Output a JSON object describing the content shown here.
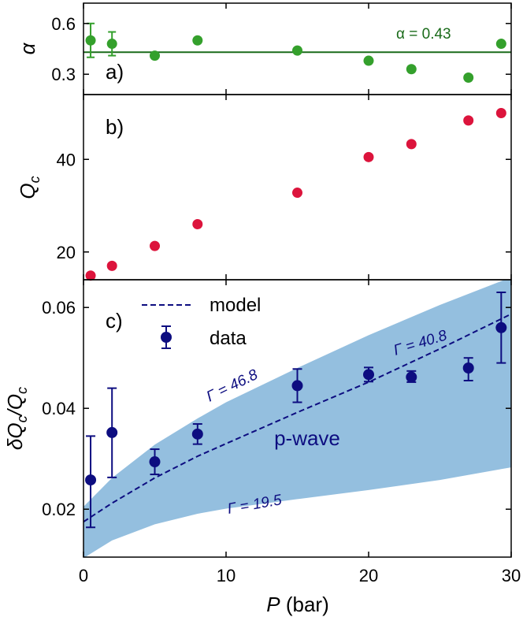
{
  "chart_data": [
    {
      "panel": "a)",
      "type": "scatter",
      "ylabel": "α",
      "ylim": [
        0.18,
        0.72
      ],
      "yticks": [
        0.3,
        0.6
      ],
      "ytick_labels": [
        "0.3",
        "0.6"
      ],
      "x": [
        0.5,
        2,
        5,
        8,
        15,
        20,
        23,
        27,
        29.3
      ],
      "y": [
        0.5,
        0.48,
        0.41,
        0.5,
        0.44,
        0.38,
        0.33,
        0.28,
        0.48
      ],
      "yerr": [
        0.1,
        0.07,
        0,
        0,
        0,
        0,
        0,
        0,
        0
      ],
      "hline": 0.43,
      "hline_label": "α = 0.43",
      "color": "#34a02c"
    },
    {
      "panel": "b)",
      "type": "scatter",
      "ylabel": "Qc",
      "ylim": [
        14,
        54
      ],
      "yticks": [
        20,
        40
      ],
      "ytick_labels": [
        "20",
        "40"
      ],
      "x": [
        0.5,
        2,
        5,
        8,
        15,
        20,
        23,
        27,
        29.3
      ],
      "y": [
        14.9,
        17.0,
        21.3,
        26.0,
        32.8,
        40.5,
        43.3,
        48.4,
        50.0
      ],
      "color": "#dc143c"
    },
    {
      "panel": "c)",
      "type": "scatter",
      "xlabel": "P (bar)",
      "ylabel": "δQc/Qc",
      "xlim": [
        0,
        30
      ],
      "ylim": [
        0.0105,
        0.0655
      ],
      "xticks": [
        0,
        10,
        20,
        30
      ],
      "xtick_labels": [
        "0",
        "10",
        "20",
        "30"
      ],
      "yticks": [
        0.02,
        0.04,
        0.06
      ],
      "ytick_labels": [
        "0.02",
        "0.04",
        "0.06"
      ],
      "series": [
        {
          "name": "data",
          "x": [
            0.5,
            2,
            5,
            8,
            15,
            20,
            23,
            27,
            29.3
          ],
          "y": [
            0.0258,
            0.0352,
            0.0294,
            0.0349,
            0.0445,
            0.0467,
            0.0462,
            0.048,
            0.056
          ],
          "yerr_low": [
            0.0094,
            0.0089,
            0.0025,
            0.002,
            0.0033,
            0.0014,
            0.001,
            0.0025,
            0.007
          ],
          "yerr_high": [
            0.0087,
            0.0088,
            0.0025,
            0.002,
            0.0033,
            0.0014,
            0.0012,
            0.002,
            0.007
          ],
          "color": "#0d0d80"
        },
        {
          "name": "model",
          "style": "dashed",
          "x": [
            0,
            2,
            5,
            8,
            10,
            15,
            20,
            25,
            30
          ],
          "y": [
            0.0175,
            0.0212,
            0.0262,
            0.0305,
            0.033,
            0.0392,
            0.0452,
            0.0518,
            0.0587
          ],
          "color": "#0d0d80"
        },
        {
          "name": "p-wave band",
          "type": "area",
          "x": [
            0,
            2,
            5,
            8,
            10,
            15,
            20,
            25,
            30
          ],
          "upper": [
            0.0205,
            0.0262,
            0.0328,
            0.038,
            0.0412,
            0.048,
            0.0545,
            0.0605,
            0.066
          ],
          "lower": [
            0.0103,
            0.0138,
            0.017,
            0.0191,
            0.0201,
            0.022,
            0.0238,
            0.0258,
            0.0283
          ],
          "color": "#94bfdf"
        }
      ],
      "annotations": {
        "gamma_upper_left": "Γ = 46.8",
        "gamma_upper_right": "Γ = 40.8",
        "gamma_lower": "Γ = 19.5",
        "band_label": "p-wave"
      },
      "legend": {
        "position": "top-left",
        "model_label": "model",
        "data_label": "data"
      }
    }
  ]
}
